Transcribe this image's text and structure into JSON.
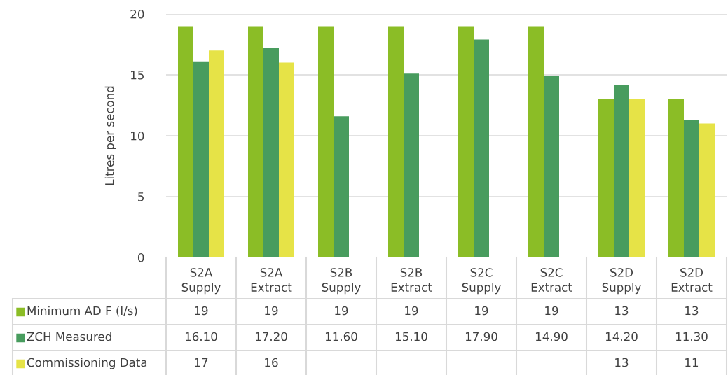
{
  "chart_data": {
    "type": "bar",
    "ylabel": "Litres per second",
    "categories": [
      "S2A\nSupply",
      "S2A\nExtract",
      "S2B\nSupply",
      "S2B\nExtract",
      "S2C\nSupply",
      "S2C\nExtract",
      "S2D\nSupply",
      "S2D\nExtract"
    ],
    "series": [
      {
        "name": "Minimum AD F (l/s)",
        "color": "#8bbd26",
        "values": [
          19,
          19,
          19,
          19,
          19,
          19,
          13,
          13
        ],
        "value_labels": [
          "19",
          "19",
          "19",
          "19",
          "19",
          "19",
          "13",
          "13"
        ]
      },
      {
        "name": "ZCH Measured",
        "color": "#489c5e",
        "values": [
          16.1,
          17.2,
          11.6,
          15.1,
          17.9,
          14.9,
          14.2,
          11.3
        ],
        "value_labels": [
          "16.10",
          "17.20",
          "11.60",
          "15.10",
          "17.90",
          "14.90",
          "14.20",
          "11.30"
        ]
      },
      {
        "name": "Commissioning Data",
        "color": "#e6e347",
        "values": [
          17,
          16,
          null,
          null,
          null,
          null,
          13,
          11
        ],
        "value_labels": [
          "17",
          "16",
          null,
          null,
          null,
          null,
          "13",
          "11"
        ]
      }
    ],
    "ylim": [
      0,
      20
    ],
    "yticks": [
      0,
      5,
      10,
      15,
      20
    ],
    "grid": "y",
    "legend": "bottom"
  }
}
